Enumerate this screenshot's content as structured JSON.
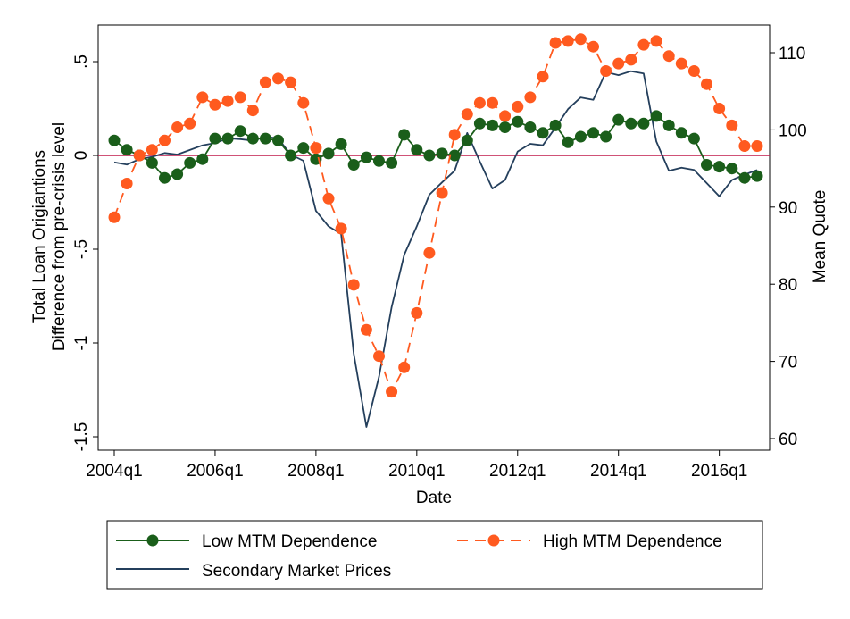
{
  "chart_data": {
    "type": "line",
    "xlabel": "Date",
    "ylabel_left": [
      "Total Loan Origiantions",
      "Difference from pre-crisis level"
    ],
    "ylabel_right": "Mean Quote",
    "x_ticks": [
      "2004q1",
      "2006q1",
      "2008q1",
      "2010q1",
      "2012q1",
      "2014q1",
      "2016q1"
    ],
    "y_left_ticks": [
      "-1.5",
      "-1",
      "-.5",
      "0",
      ".5"
    ],
    "y_right_ticks": [
      "60",
      "70",
      "80",
      "90",
      "100",
      "110"
    ],
    "y_left_range": [
      -1.5,
      0.5
    ],
    "y_right_range": [
      60,
      110
    ],
    "reference_line_y": 0,
    "x": [
      "2004q1",
      "2004q2",
      "2004q3",
      "2004q4",
      "2005q1",
      "2005q2",
      "2005q3",
      "2005q4",
      "2006q1",
      "2006q2",
      "2006q3",
      "2006q4",
      "2007q1",
      "2007q2",
      "2007q3",
      "2007q4",
      "2008q1",
      "2008q2",
      "2008q3",
      "2008q4",
      "2009q1",
      "2009q2",
      "2009q3",
      "2009q4",
      "2010q1",
      "2010q2",
      "2010q3",
      "2010q4",
      "2011q1",
      "2011q2",
      "2011q3",
      "2011q4",
      "2012q1",
      "2012q2",
      "2012q3",
      "2012q4",
      "2013q1",
      "2013q2",
      "2013q3",
      "2013q4",
      "2014q1",
      "2014q2",
      "2014q3",
      "2014q4",
      "2015q1",
      "2015q2",
      "2015q3",
      "2015q4",
      "2016q1",
      "2016q2",
      "2016q3",
      "2016q4"
    ],
    "series": [
      {
        "name": "Low MTM Dependence",
        "axis": "left",
        "color": "#1a5e1a",
        "marker": "circle",
        "dashed": false,
        "values": [
          0.08,
          0.03,
          0.0,
          -0.04,
          -0.12,
          -0.1,
          -0.04,
          -0.02,
          0.09,
          0.09,
          0.13,
          0.09,
          0.09,
          0.08,
          0.0,
          0.04,
          -0.02,
          0.01,
          0.06,
          -0.05,
          -0.01,
          -0.03,
          -0.04,
          0.11,
          0.03,
          0.0,
          0.01,
          0.0,
          0.08,
          0.17,
          0.16,
          0.15,
          0.18,
          0.15,
          0.12,
          0.16,
          0.07,
          0.1,
          0.12,
          0.1,
          0.19,
          0.17,
          0.17,
          0.21,
          0.16,
          0.12,
          0.09,
          -0.05,
          -0.06,
          -0.07,
          -0.12,
          -0.11
        ]
      },
      {
        "name": "High MTM Dependence",
        "axis": "left",
        "color": "#ff5a1f",
        "marker": "circle",
        "dashed": true,
        "values": [
          -0.33,
          -0.15,
          0.0,
          0.03,
          0.08,
          0.15,
          0.17,
          0.31,
          0.27,
          0.29,
          0.31,
          0.24,
          0.39,
          0.41,
          0.39,
          0.28,
          0.04,
          -0.23,
          -0.39,
          -0.69,
          -0.93,
          -1.07,
          -1.26,
          -1.13,
          -0.84,
          -0.52,
          -0.2,
          0.11,
          0.22,
          0.28,
          0.28,
          0.21,
          0.26,
          0.31,
          0.42,
          0.6,
          0.61,
          0.62,
          0.58,
          0.45,
          0.49,
          0.51,
          0.59,
          0.61,
          0.53,
          0.49,
          0.45,
          0.38,
          0.25,
          0.16,
          0.05,
          0.05
        ]
      },
      {
        "name": "Secondary Market Prices",
        "axis": "right",
        "color": "#243f5c",
        "marker": "none",
        "dashed": false,
        "values": [
          95.8,
          95.5,
          96.2,
          96.5,
          97.0,
          96.8,
          97.4,
          98.0,
          98.3,
          98.9,
          98.8,
          98.6,
          99.1,
          98.9,
          96.8,
          96.0,
          89.5,
          87.5,
          86.5,
          71.0,
          61.5,
          68.0,
          77.0,
          83.8,
          87.5,
          91.6,
          93.2,
          94.7,
          99.6,
          95.9,
          92.4,
          93.5,
          97.2,
          98.2,
          98.0,
          100.3,
          102.7,
          104.2,
          103.9,
          107.5,
          107.1,
          107.6,
          107.3,
          98.5,
          94.7,
          95.1,
          94.8,
          93.1,
          91.4,
          93.5,
          94.2,
          94.8
        ]
      }
    ]
  },
  "legend": {
    "items": [
      {
        "label": "Low MTM Dependence"
      },
      {
        "label": "High MTM Dependence"
      },
      {
        "label": "Secondary Market Prices"
      }
    ]
  }
}
